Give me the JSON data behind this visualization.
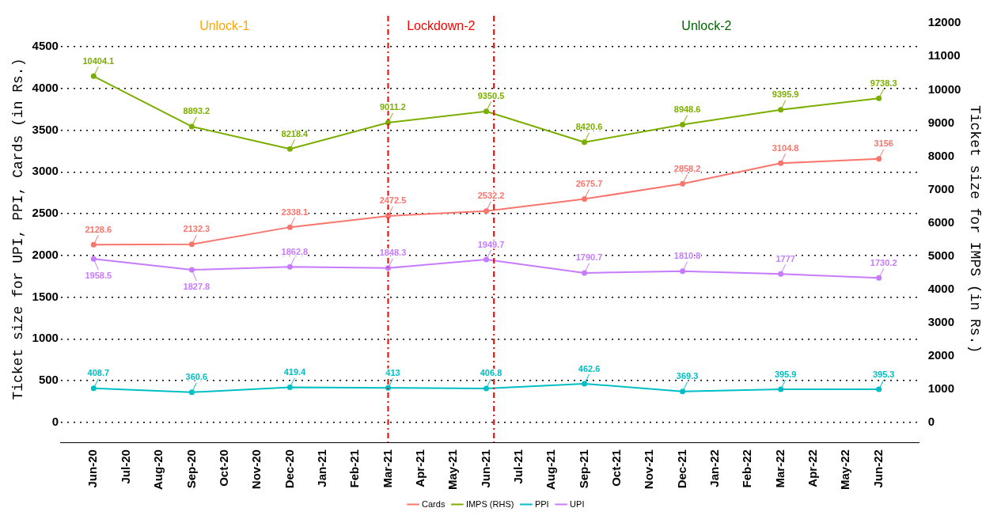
{
  "chart_data": {
    "type": "line",
    "xlabel": null,
    "ylabel": "Ticket size for UPI, PPI, Cards (in Rs.)",
    "y2label": "Ticket size for IMPS (in Rs.)",
    "x": [
      "2020-06",
      "2020-09",
      "2020-12",
      "2021-03",
      "2021-06",
      "2021-09",
      "2021-12",
      "2022-03",
      "2022-06"
    ],
    "series": [
      {
        "name": "Cards",
        "color": "#f8766d",
        "values": [
          2128.6,
          2132.3,
          2338.1,
          2472.5,
          2532.2,
          2675.7,
          2858.2,
          3104.8,
          3156
        ]
      },
      {
        "name": "IMPS (RHS)",
        "color": "#7cae00",
        "axis": "y2",
        "values": [
          10404.1,
          8893.2,
          8218.4,
          9011.2,
          9350.5,
          8420.6,
          8948.6,
          9395.9,
          9738.3
        ]
      },
      {
        "name": "PPI",
        "color": "#00bfc4",
        "values": [
          408.7,
          360.6,
          419.4,
          413,
          406.8,
          462.6,
          369.3,
          395.9,
          395.3
        ]
      },
      {
        "name": "UPI",
        "color": "#c77cff",
        "values": [
          1958.5,
          1827.8,
          1862.8,
          1848.3,
          1949.7,
          1790.7,
          1810.8,
          1777,
          1730.2
        ]
      }
    ],
    "xlim": [
      "2020-05-01",
      "2022-07-08"
    ],
    "xticks": [
      {
        "value": "2020-06",
        "label": "Jun-20"
      },
      {
        "value": "2020-07",
        "label": "Jul-20"
      },
      {
        "value": "2020-08",
        "label": "Aug-20"
      },
      {
        "value": "2020-09",
        "label": "Sep-20"
      },
      {
        "value": "2020-10",
        "label": "Oct-20"
      },
      {
        "value": "2020-11",
        "label": "Nov-20"
      },
      {
        "value": "2020-12",
        "label": "Dec-20"
      },
      {
        "value": "2021-01",
        "label": "Jan-21"
      },
      {
        "value": "2021-02",
        "label": "Feb-21"
      },
      {
        "value": "2021-03",
        "label": "Mar-21"
      },
      {
        "value": "2021-04",
        "label": "Apr-21"
      },
      {
        "value": "2021-05",
        "label": "May-21"
      },
      {
        "value": "2021-06",
        "label": "Jun-21"
      },
      {
        "value": "2021-07",
        "label": "Jul-21"
      },
      {
        "value": "2021-08",
        "label": "Aug-21"
      },
      {
        "value": "2021-09",
        "label": "Sep-21"
      },
      {
        "value": "2021-10",
        "label": "Oct-21"
      },
      {
        "value": "2021-11",
        "label": "Nov-21"
      },
      {
        "value": "2021-12",
        "label": "Dec-21"
      },
      {
        "value": "2022-01",
        "label": "Jan-22"
      },
      {
        "value": "2022-02",
        "label": "Feb-22"
      },
      {
        "value": "2022-03",
        "label": "Mar-22"
      },
      {
        "value": "2022-04",
        "label": "Apr-22"
      },
      {
        "value": "2022-05",
        "label": "May-22"
      },
      {
        "value": "2022-06",
        "label": "Jun-22"
      }
    ],
    "ylim": [
      -240,
      4870
    ],
    "yticks": [
      0,
      500,
      1000,
      1500,
      2000,
      2500,
      3000,
      3500,
      4000,
      4500
    ],
    "y2lim": [
      -600,
      12220
    ],
    "y2ticks": [
      0,
      1000,
      2000,
      3000,
      4000,
      5000,
      6000,
      7000,
      8000,
      9000,
      10000,
      11000,
      12000
    ],
    "ref_lines": [
      {
        "axis": "x",
        "value": "2021-03",
        "color": "#ff0000",
        "line_style": "dashed"
      },
      {
        "axis": "x",
        "value": "2021-06-08",
        "color": "#ff0000",
        "line_style": "dashed"
      }
    ],
    "annotations": [
      "Unlock-1",
      "Lockdown-2",
      "Unlock-2"
    ],
    "data_labels": true,
    "grid": "y",
    "legend": "bottom",
    "marker": "circle",
    "line_style": "solid"
  }
}
